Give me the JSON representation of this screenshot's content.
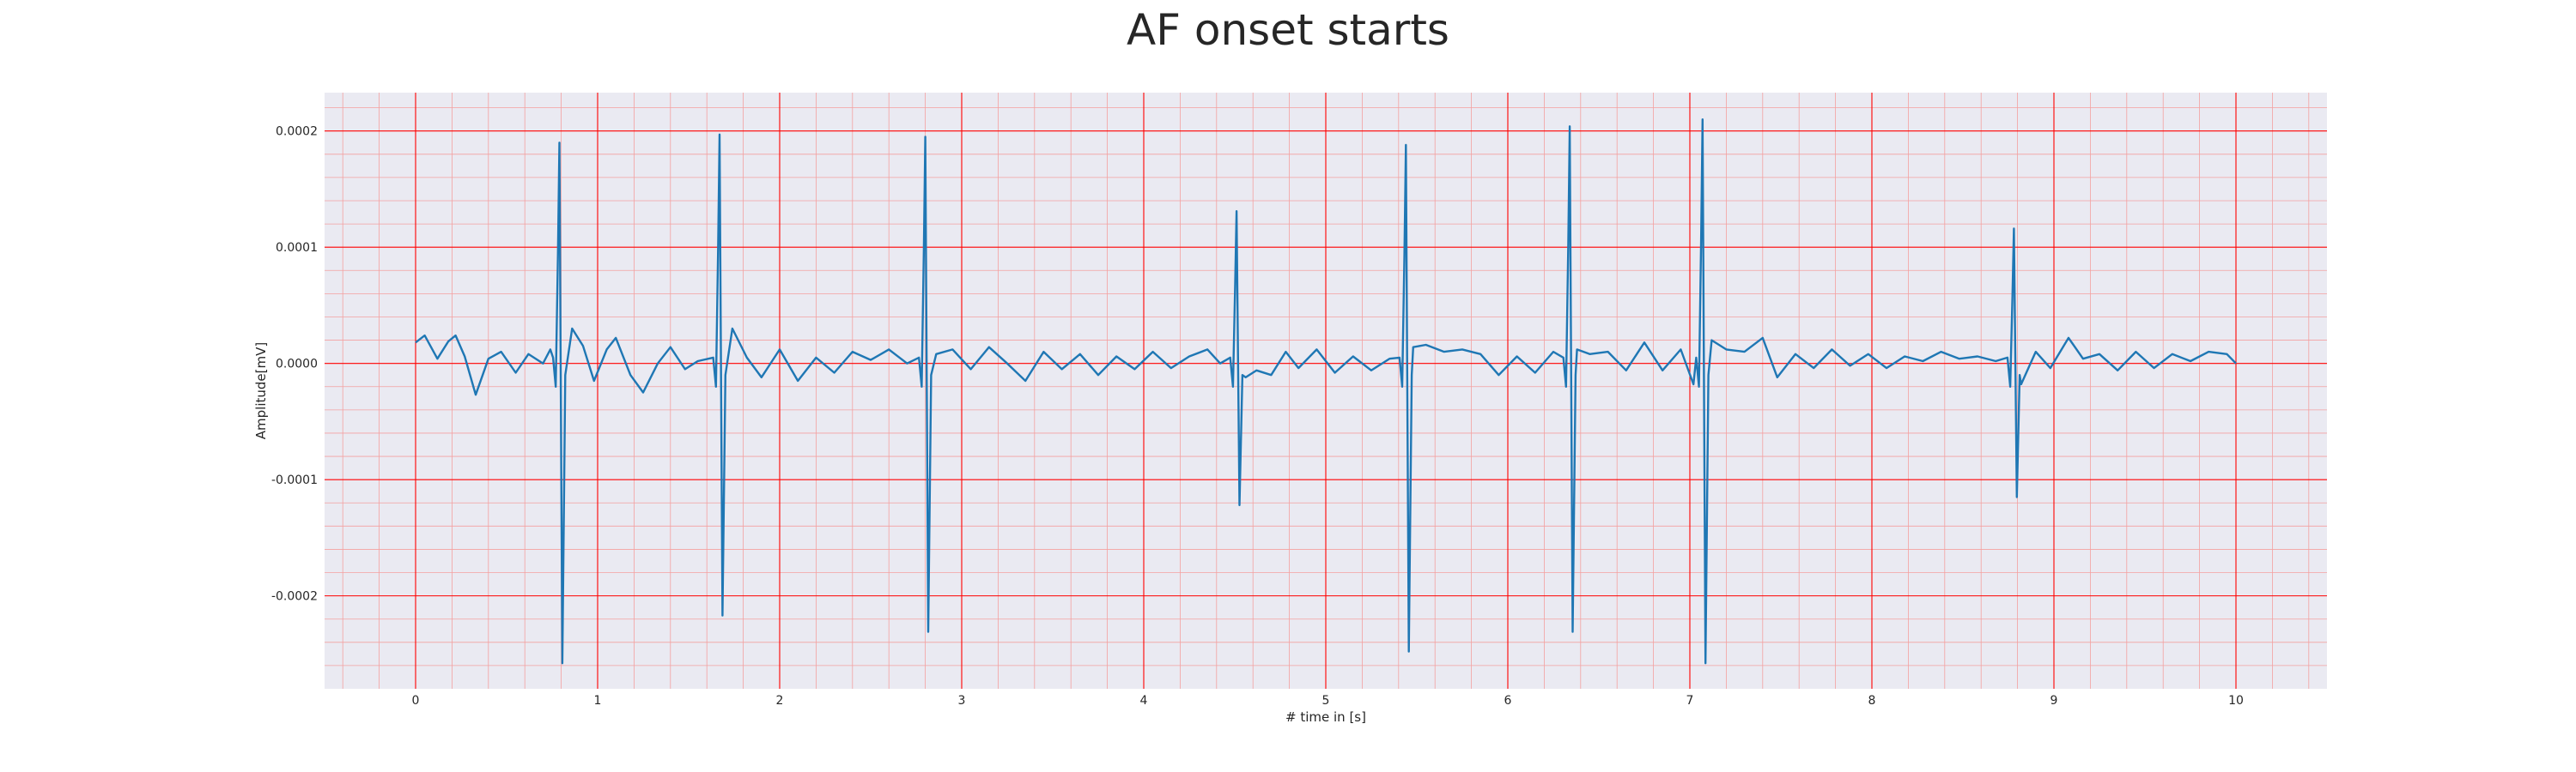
{
  "chart_data": {
    "type": "line",
    "title": "AF onset starts",
    "xlabel": "# time in [s]",
    "ylabel": "Amplitude[mV]",
    "xlim": [
      -0.5,
      10.5
    ],
    "ylim": [
      -0.00028,
      0.000233
    ],
    "x_ticks": [
      0,
      1,
      2,
      3,
      4,
      5,
      6,
      7,
      8,
      9,
      10
    ],
    "x_tick_labels": [
      "0",
      "1",
      "2",
      "3",
      "4",
      "5",
      "6",
      "7",
      "8",
      "9",
      "10"
    ],
    "y_ticks": [
      0.0002,
      0.0001,
      0.0,
      -0.0001,
      -0.0002
    ],
    "y_tick_labels": [
      "0.0002",
      "0.0001",
      "0.0000",
      "-0.0001",
      "-0.0002"
    ],
    "grid": "on",
    "colors": {
      "plot_background": "#eaeaf2",
      "major_grid": "#ff0000",
      "minor_grid": "#f4a0a0",
      "line": "#1f77b4"
    },
    "series": [
      {
        "beats": [
          {
            "t": 0.79,
            "peak": 0.00019,
            "trough": -0.000258
          },
          {
            "t": 1.67,
            "peak": 0.000197,
            "trough": -0.000217
          },
          {
            "t": 2.8,
            "peak": 0.000195,
            "trough": -0.000231
          },
          {
            "t": 4.51,
            "peak": 0.000131,
            "trough": -0.000122
          },
          {
            "t": 5.44,
            "peak": 0.000188,
            "trough": -0.000248
          },
          {
            "t": 6.34,
            "peak": 0.000204,
            "trough": -0.000231
          },
          {
            "t": 7.07,
            "peak": 0.00021,
            "trough": -0.000258
          },
          {
            "t": 8.78,
            "peak": 0.000116,
            "trough": -0.000115
          }
        ],
        "baseline_points": [
          [
            0.0,
            1.8e-05
          ],
          [
            0.05,
            2.4e-05
          ],
          [
            0.12,
            4e-06
          ],
          [
            0.18,
            1.9e-05
          ],
          [
            0.22,
            2.4e-05
          ],
          [
            0.27,
            6e-06
          ],
          [
            0.33,
            -2.7e-05
          ],
          [
            0.4,
            4e-06
          ],
          [
            0.47,
            1e-05
          ],
          [
            0.55,
            -8e-06
          ],
          [
            0.62,
            8e-06
          ],
          [
            0.7,
            0.0
          ],
          [
            0.74,
            1.2e-05
          ],
          [
            0.86,
            3e-05
          ],
          [
            0.92,
            1.5e-05
          ],
          [
            0.98,
            -1.5e-05
          ],
          [
            1.05,
            1.2e-05
          ],
          [
            1.1,
            2.2e-05
          ],
          [
            1.18,
            -1e-05
          ],
          [
            1.25,
            -2.5e-05
          ],
          [
            1.33,
            0.0
          ],
          [
            1.4,
            1.4e-05
          ],
          [
            1.48,
            -5e-06
          ],
          [
            1.55,
            2e-06
          ],
          [
            1.74,
            3e-05
          ],
          [
            1.82,
            5e-06
          ],
          [
            1.9,
            -1.2e-05
          ],
          [
            2.0,
            1.2e-05
          ],
          [
            2.1,
            -1.5e-05
          ],
          [
            2.2,
            5e-06
          ],
          [
            2.3,
            -8e-06
          ],
          [
            2.4,
            1e-05
          ],
          [
            2.5,
            3e-06
          ],
          [
            2.6,
            1.2e-05
          ],
          [
            2.7,
            0.0
          ],
          [
            2.86,
            8e-06
          ],
          [
            2.95,
            1.2e-05
          ],
          [
            3.05,
            -5e-06
          ],
          [
            3.15,
            1.4e-05
          ],
          [
            3.25,
            0.0
          ],
          [
            3.35,
            -1.5e-05
          ],
          [
            3.45,
            1e-05
          ],
          [
            3.55,
            -5e-06
          ],
          [
            3.65,
            8e-06
          ],
          [
            3.75,
            -1e-05
          ],
          [
            3.85,
            6e-06
          ],
          [
            3.95,
            -5e-06
          ],
          [
            4.05,
            1e-05
          ],
          [
            4.15,
            -4e-06
          ],
          [
            4.25,
            6e-06
          ],
          [
            4.35,
            1.2e-05
          ],
          [
            4.42,
            0.0
          ],
          [
            4.56,
            -1.2e-05
          ],
          [
            4.62,
            -6e-06
          ],
          [
            4.7,
            -1e-05
          ],
          [
            4.78,
            1e-05
          ],
          [
            4.85,
            -4e-06
          ],
          [
            4.95,
            1.2e-05
          ],
          [
            5.05,
            -8e-06
          ],
          [
            5.15,
            6e-06
          ],
          [
            5.25,
            -6e-06
          ],
          [
            5.35,
            4e-06
          ],
          [
            5.48,
            1.4e-05
          ],
          [
            5.55,
            1.6e-05
          ],
          [
            5.65,
            1e-05
          ],
          [
            5.75,
            1.2e-05
          ],
          [
            5.85,
            8e-06
          ],
          [
            5.95,
            -1e-05
          ],
          [
            6.05,
            6e-06
          ],
          [
            6.15,
            -8e-06
          ],
          [
            6.25,
            1e-05
          ],
          [
            6.38,
            1.2e-05
          ],
          [
            6.45,
            8e-06
          ],
          [
            6.55,
            1e-05
          ],
          [
            6.65,
            -6e-06
          ],
          [
            6.75,
            1.8e-05
          ],
          [
            6.85,
            -6e-06
          ],
          [
            6.95,
            1.2e-05
          ],
          [
            7.02,
            -1.8e-05
          ],
          [
            7.12,
            2e-05
          ],
          [
            7.2,
            1.2e-05
          ],
          [
            7.3,
            1e-05
          ],
          [
            7.4,
            2.2e-05
          ],
          [
            7.48,
            -1.2e-05
          ],
          [
            7.58,
            8e-06
          ],
          [
            7.68,
            -4e-06
          ],
          [
            7.78,
            1.2e-05
          ],
          [
            7.88,
            -2e-06
          ],
          [
            7.98,
            8e-06
          ],
          [
            8.08,
            -4e-06
          ],
          [
            8.18,
            6e-06
          ],
          [
            8.28,
            2e-06
          ],
          [
            8.38,
            1e-05
          ],
          [
            8.48,
            4e-06
          ],
          [
            8.58,
            6e-06
          ],
          [
            8.68,
            2e-06
          ],
          [
            8.82,
            -1.8e-05
          ],
          [
            8.9,
            1e-05
          ],
          [
            8.98,
            -4e-06
          ],
          [
            9.08,
            2.2e-05
          ],
          [
            9.16,
            4e-06
          ],
          [
            9.25,
            8e-06
          ],
          [
            9.35,
            -6e-06
          ],
          [
            9.45,
            1e-05
          ],
          [
            9.55,
            -4e-06
          ],
          [
            9.65,
            8e-06
          ],
          [
            9.75,
            2e-06
          ],
          [
            9.85,
            1e-05
          ],
          [
            9.95,
            8e-06
          ],
          [
            10.0,
            0.0
          ]
        ]
      }
    ]
  }
}
